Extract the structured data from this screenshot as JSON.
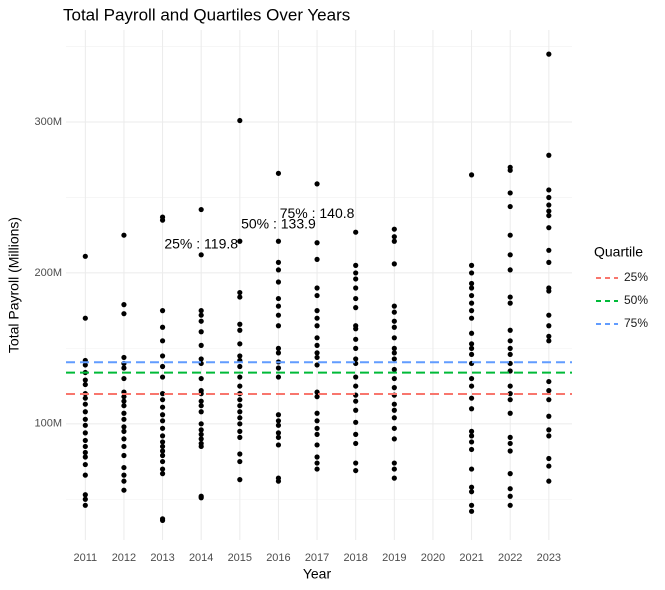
{
  "chart_data": {
    "type": "scatter",
    "title": "Total Payroll and Quartiles Over Years",
    "x_label": "Year",
    "y_label": "Total Payroll (Millions)",
    "color": "#000000",
    "x": [
      2011,
      2011,
      2011,
      2011,
      2011,
      2011,
      2011,
      2011,
      2011,
      2011,
      2011,
      2011,
      2011,
      2011,
      2011,
      2011,
      2011,
      2011,
      2011,
      2011,
      2011,
      2011,
      2011,
      2012,
      2012,
      2012,
      2012,
      2012,
      2012,
      2012,
      2012,
      2012,
      2012,
      2012,
      2012,
      2012,
      2012,
      2012,
      2012,
      2012,
      2012,
      2012,
      2012,
      2012,
      2012,
      2013,
      2013,
      2013,
      2013,
      2013,
      2013,
      2013,
      2013,
      2013,
      2013,
      2013,
      2013,
      2013,
      2013,
      2013,
      2013,
      2013,
      2013,
      2013,
      2013,
      2013,
      2013,
      2013,
      2013,
      2014,
      2014,
      2014,
      2014,
      2014,
      2014,
      2014,
      2014,
      2014,
      2014,
      2014,
      2014,
      2014,
      2014,
      2014,
      2014,
      2014,
      2014,
      2014,
      2014,
      2014,
      2014,
      2014,
      2015,
      2015,
      2015,
      2015,
      2015,
      2015,
      2015,
      2015,
      2015,
      2015,
      2015,
      2015,
      2015,
      2015,
      2015,
      2015,
      2015,
      2015,
      2015,
      2015,
      2015,
      2015,
      2015,
      2016,
      2016,
      2016,
      2016,
      2016,
      2016,
      2016,
      2016,
      2016,
      2016,
      2016,
      2016,
      2016,
      2016,
      2016,
      2016,
      2016,
      2016,
      2016,
      2016,
      2016,
      2016,
      2017,
      2017,
      2017,
      2017,
      2017,
      2017,
      2017,
      2017,
      2017,
      2017,
      2017,
      2017,
      2017,
      2017,
      2017,
      2017,
      2017,
      2017,
      2017,
      2017,
      2017,
      2017,
      2017,
      2018,
      2018,
      2018,
      2018,
      2018,
      2018,
      2018,
      2018,
      2018,
      2018,
      2018,
      2018,
      2018,
      2018,
      2018,
      2018,
      2018,
      2018,
      2018,
      2018,
      2018,
      2018,
      2018,
      2019,
      2019,
      2019,
      2019,
      2019,
      2019,
      2019,
      2019,
      2019,
      2019,
      2019,
      2019,
      2019,
      2019,
      2019,
      2019,
      2019,
      2019,
      2019,
      2019,
      2019,
      2019,
      2019,
      2019,
      2021,
      2021,
      2021,
      2021,
      2021,
      2021,
      2021,
      2021,
      2021,
      2021,
      2021,
      2021,
      2021,
      2021,
      2021,
      2021,
      2021,
      2021,
      2021,
      2021,
      2021,
      2021,
      2021,
      2021,
      2021,
      2021,
      2021,
      2022,
      2022,
      2022,
      2022,
      2022,
      2022,
      2022,
      2022,
      2022,
      2022,
      2022,
      2022,
      2022,
      2022,
      2022,
      2022,
      2022,
      2022,
      2022,
      2022,
      2022,
      2022,
      2022,
      2022,
      2022,
      2022,
      2023,
      2023,
      2023,
      2023,
      2023,
      2023,
      2023,
      2023,
      2023,
      2023,
      2023,
      2023,
      2023,
      2023,
      2023,
      2023,
      2023,
      2023,
      2023,
      2023,
      2023,
      2023,
      2023,
      2023,
      2023
    ],
    "values": [
      211,
      170,
      142,
      139,
      134,
      129,
      126,
      120,
      117,
      113,
      108,
      103,
      99,
      94,
      89,
      85,
      81,
      78,
      73,
      66,
      53,
      50,
      46,
      225,
      179,
      173,
      144,
      140,
      137,
      130,
      121,
      118,
      115,
      112,
      107,
      103,
      98,
      95,
      90,
      85,
      79,
      71,
      66,
      62,
      56,
      237,
      235,
      175,
      164,
      155,
      145,
      138,
      131,
      120,
      116,
      111,
      106,
      102,
      97,
      92,
      88,
      85,
      82,
      79,
      75,
      70,
      67,
      37,
      36,
      242,
      212,
      175,
      172,
      168,
      161,
      152,
      143,
      140,
      130,
      122,
      120,
      115,
      112,
      108,
      100,
      96,
      93,
      90,
      87,
      85,
      52,
      51,
      301,
      221,
      187,
      184,
      166,
      162,
      153,
      145,
      142,
      138,
      131,
      125,
      120,
      116,
      112,
      108,
      104,
      100,
      95,
      91,
      80,
      75,
      63,
      266,
      221,
      207,
      202,
      194,
      183,
      178,
      172,
      165,
      150,
      147,
      141,
      137,
      131,
      106,
      102,
      99,
      94,
      91,
      86,
      64,
      62,
      259,
      220,
      209,
      190,
      185,
      175,
      170,
      165,
      157,
      152,
      147,
      144,
      139,
      121,
      118,
      107,
      102,
      97,
      93,
      86,
      78,
      74,
      70,
      227,
      205,
      200,
      196,
      190,
      183,
      177,
      165,
      163,
      156,
      150,
      143,
      140,
      131,
      125,
      119,
      115,
      109,
      101,
      93,
      87,
      74,
      69,
      229,
      224,
      221,
      206,
      178,
      174,
      168,
      164,
      157,
      150,
      147,
      143,
      136,
      130,
      124,
      119,
      113,
      109,
      104,
      97,
      90,
      74,
      70,
      64,
      265,
      205,
      200,
      193,
      190,
      185,
      180,
      175,
      170,
      160,
      153,
      150,
      146,
      140,
      130,
      125,
      117,
      110,
      95,
      92,
      88,
      83,
      70,
      58,
      55,
      46,
      42,
      270,
      268,
      253,
      244,
      225,
      212,
      202,
      184,
      180,
      162,
      155,
      150,
      146,
      140,
      135,
      125,
      120,
      116,
      107,
      91,
      87,
      82,
      67,
      57,
      52,
      46,
      345,
      278,
      255,
      250,
      245,
      241,
      238,
      230,
      215,
      207,
      190,
      188,
      172,
      165,
      158,
      155,
      128,
      122,
      116,
      105,
      96,
      92,
      77,
      72,
      62
    ],
    "hlines": [
      {
        "name": "25%",
        "color": "#F8766D",
        "value": 119.8
      },
      {
        "name": "50%",
        "color": "#00BA38",
        "value": 133.9
      },
      {
        "name": "75%",
        "color": "#619CFF",
        "value": 140.8
      }
    ],
    "annotations": [
      "25% : 119.8",
      "50% : 133.9",
      "75% : 140.8"
    ],
    "legend_title": "Quartile",
    "legend": "right",
    "xlim": [
      2010.5,
      2023.6
    ],
    "ylim": [
      23,
      361
    ],
    "xticks": [
      2011,
      2012,
      2013,
      2014,
      2015,
      2016,
      2017,
      2018,
      2019,
      2020,
      2021,
      2022,
      2023
    ],
    "yticks": [
      {
        "value": 100,
        "label": "100M"
      },
      {
        "value": 200,
        "label": "200M"
      },
      {
        "value": 300,
        "label": "300M"
      }
    ],
    "grid": true
  }
}
